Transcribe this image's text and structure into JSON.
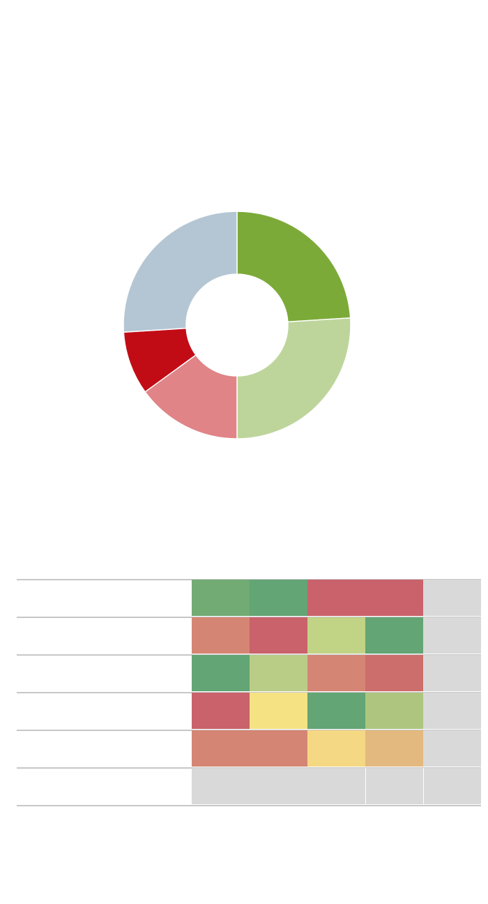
{
  "chart_data": [
    {
      "type": "pie",
      "donut": true,
      "slices": [
        {
          "value": 24.0,
          "color": "#7caa39"
        },
        {
          "value": 26.0,
          "color": "#bdd59b"
        },
        {
          "value": 15.0,
          "color": "#e08487"
        },
        {
          "value": 9.0,
          "color": "#c20c15"
        },
        {
          "value": 26.0,
          "color": "#b4c6d3"
        }
      ]
    },
    {
      "type": "heatmap",
      "rows": [
        {
          "cells": [
            {
              "color": "#72ab74"
            },
            {
              "color": "#63a574"
            },
            {
              "color": "#c9626b"
            },
            {
              "color": "#c9626b"
            },
            {
              "color": "#d9d9d9"
            }
          ]
        },
        {
          "cells": [
            {
              "color": "#d58574"
            },
            {
              "color": "#c9626b"
            },
            {
              "color": "#c1d385"
            },
            {
              "color": "#63a574"
            },
            {
              "color": "#d9d9d9"
            }
          ]
        },
        {
          "cells": [
            {
              "color": "#63a574"
            },
            {
              "color": "#b9cd86"
            },
            {
              "color": "#d58574"
            },
            {
              "color": "#cc6e6b"
            },
            {
              "color": "#d9d9d9"
            }
          ]
        },
        {
          "cells": [
            {
              "color": "#c9626b"
            },
            {
              "color": "#f4e283"
            },
            {
              "color": "#63a574"
            },
            {
              "color": "#adc57f"
            },
            {
              "color": "#d9d9d9"
            }
          ]
        },
        {
          "cells": [
            {
              "color": "#d58574"
            },
            {
              "color": "#d58574"
            },
            {
              "color": "#f4d884"
            },
            {
              "color": "#e4b97f"
            },
            {
              "color": "#d9d9d9"
            }
          ]
        },
        {
          "cells": [
            {
              "color": "#d9d9d9"
            },
            {
              "color": "#d9d9d9"
            },
            {
              "color": "#d9d9d9"
            },
            {
              "color": "#d9d9d9"
            },
            {
              "color": "#d9d9d9"
            }
          ]
        }
      ]
    }
  ]
}
